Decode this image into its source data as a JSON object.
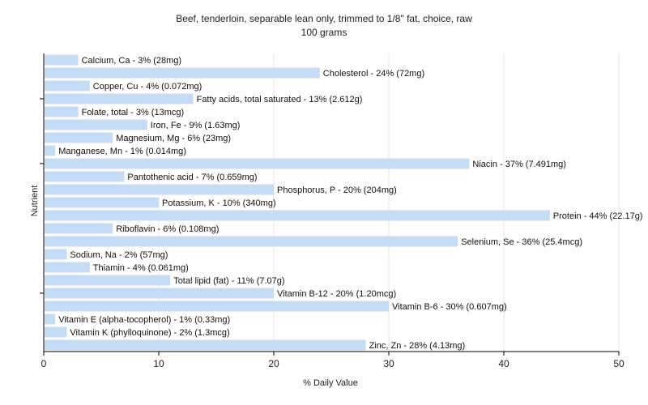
{
  "chart_data": {
    "type": "bar",
    "orientation": "horizontal",
    "title": "Beef, tenderloin, separable lean only, trimmed to 1/8\" fat, choice, raw",
    "subtitle": "100 grams",
    "xlabel": "% Daily Value",
    "ylabel": "Nutrient",
    "xlim": [
      0,
      50
    ],
    "xticks": [
      0,
      10,
      20,
      30,
      40,
      50
    ],
    "grid": true,
    "bar_color": "#c6dcf5",
    "categories": [
      "Calcium, Ca",
      "Cholesterol",
      "Copper, Cu",
      "Fatty acids, total saturated",
      "Folate, total",
      "Iron, Fe",
      "Magnesium, Mg",
      "Manganese, Mn",
      "Niacin",
      "Pantothenic acid",
      "Phosphorus, P",
      "Potassium, K",
      "Protein",
      "Riboflavin",
      "Selenium, Se",
      "Sodium, Na",
      "Thiamin",
      "Total lipid (fat)",
      "Vitamin B-12",
      "Vitamin B-6",
      "Vitamin E (alpha-tocopherol)",
      "Vitamin K (phylloquinone)",
      "Zinc, Zn"
    ],
    "values": [
      3,
      24,
      4,
      13,
      3,
      9,
      6,
      1,
      37,
      7,
      20,
      10,
      44,
      6,
      36,
      2,
      4,
      11,
      20,
      30,
      1,
      2,
      28
    ],
    "labels": [
      "Calcium, Ca - 3% (28mg)",
      "Cholesterol - 24% (72mg)",
      "Copper, Cu - 4% (0.072mg)",
      "Fatty acids, total saturated - 13% (2.612g)",
      "Folate, total - 3% (13mcg)",
      "Iron, Fe - 9% (1.63mg)",
      "Magnesium, Mg - 6% (23mg)",
      "Manganese, Mn - 1% (0.014mg)",
      "Niacin - 37% (7.491mg)",
      "Pantothenic acid - 7% (0.659mg)",
      "Phosphorus, P - 20% (204mg)",
      "Potassium, K - 10% (340mg)",
      "Protein - 44% (22.17g)",
      "Riboflavin - 6% (0.108mg)",
      "Selenium, Se - 36% (25.4mcg)",
      "Sodium, Na - 2% (57mg)",
      "Thiamin - 4% (0.061mg)",
      "Total lipid (fat) - 11% (7.07g)",
      "Vitamin B-12 - 20% (1.20mcg)",
      "Vitamin B-6 - 30% (0.607mg)",
      "Vitamin E (alpha-tocopherol) - 1% (0.33mg)",
      "Vitamin K (phylloquinone) - 2% (1.3mcg)",
      "Zinc, Zn - 28% (4.13mg)"
    ]
  }
}
